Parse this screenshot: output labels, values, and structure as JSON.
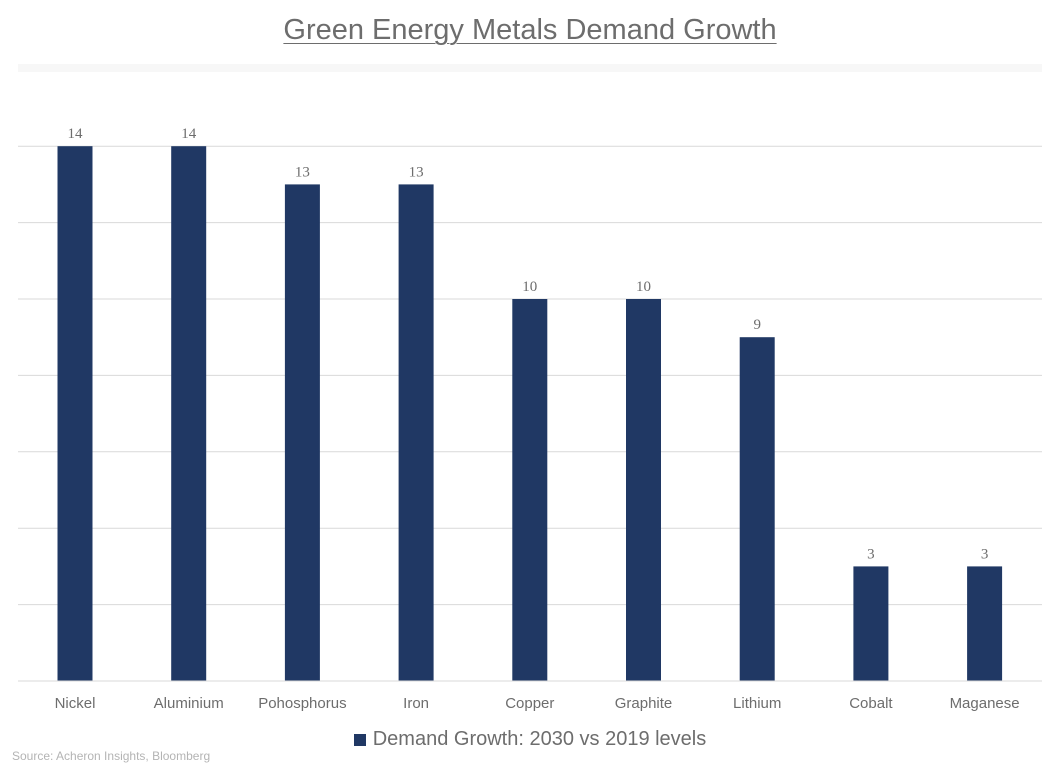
{
  "chart_data": {
    "type": "bar",
    "title": "Green Energy Metals Demand Growth",
    "categories": [
      "Nickel",
      "Aluminium",
      "Pohosphorus",
      "Iron",
      "Copper",
      "Graphite",
      "Lithium",
      "Cobalt",
      "Maganese"
    ],
    "series": [
      {
        "name": "Demand Growth: 2030 vs 2019 levels",
        "values": [
          14,
          14,
          13,
          13,
          10,
          10,
          9,
          3,
          3
        ]
      }
    ],
    "data_labels": [
      "14",
      "14",
      "13",
      "13",
      "10",
      "10",
      "9",
      "3",
      "3"
    ],
    "xlabel": "",
    "ylabel": "",
    "ylim": [
      0,
      14
    ],
    "grid": true,
    "legend": "bottom",
    "source": "Source: Acheron Insights, Bloomberg",
    "colors": {
      "bar": "#203864",
      "grid": "#d9d9d9",
      "text": "#6d6d6d"
    }
  }
}
